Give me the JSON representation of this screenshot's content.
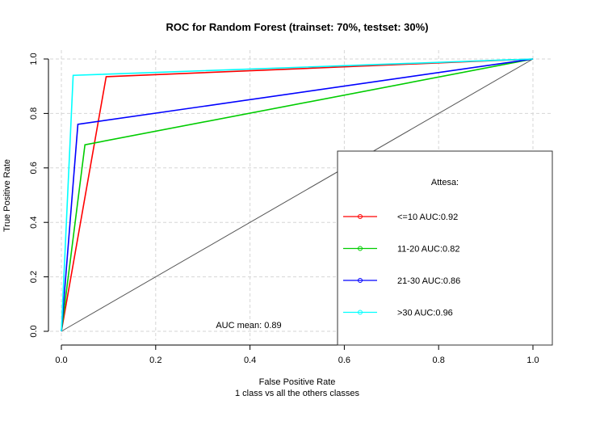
{
  "chart_data": {
    "type": "line",
    "title": "ROC for Random Forest (trainset: 70%, testset: 30%)",
    "xlabel": "False Positive Rate",
    "xlabel_sub": "1 class vs all the others classes",
    "ylabel": "True Positive Rate",
    "xlim": [
      0,
      1
    ],
    "ylim": [
      0,
      1
    ],
    "x_ticks": [
      "0.0",
      "0.2",
      "0.4",
      "0.6",
      "0.8",
      "1.0"
    ],
    "y_ticks": [
      "0.0",
      "0.2",
      "0.4",
      "0.6",
      "0.8",
      "1.0"
    ],
    "grid": true,
    "annotation": "AUC mean: 0.89",
    "legend": {
      "title": "Attesa:",
      "position": "bottom-right"
    },
    "diagonal": {
      "x": [
        0,
        1
      ],
      "y": [
        0,
        1
      ],
      "color": "#555555"
    },
    "series": [
      {
        "name": "<=10 AUC:0.92",
        "color": "#ff0000",
        "x": [
          0,
          0.095,
          1
        ],
        "y": [
          0,
          0.935,
          1
        ]
      },
      {
        "name": "11-20 AUC:0.82",
        "color": "#00cc00",
        "x": [
          0,
          0.05,
          1
        ],
        "y": [
          0,
          0.685,
          1
        ]
      },
      {
        "name": "21-30 AUC:0.86",
        "color": "#0000ff",
        "x": [
          0,
          0.035,
          1
        ],
        "y": [
          0,
          0.76,
          1
        ]
      },
      {
        "name": ">30 AUC:0.96",
        "color": "#00ffff",
        "x": [
          0,
          0.025,
          1
        ],
        "y": [
          0,
          0.94,
          1
        ]
      }
    ]
  }
}
